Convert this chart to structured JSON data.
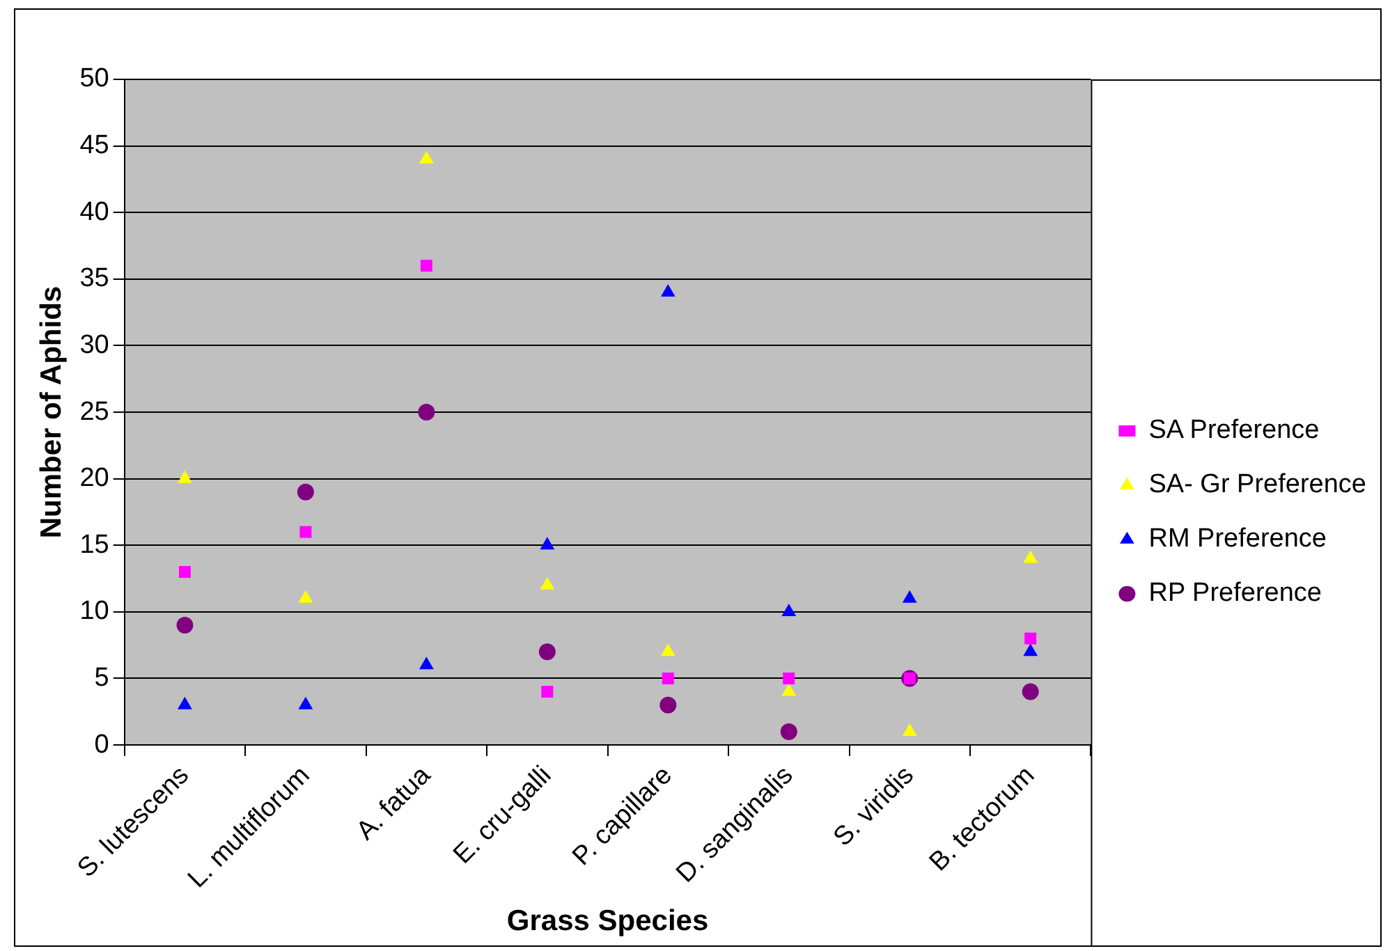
{
  "chart_data": {
    "type": "scatter",
    "xlabel": "Grass Species",
    "ylabel": "Number of Aphids",
    "categories": [
      "S. lutescens",
      "L. multiflorum",
      "A. fatua",
      "E. cru-galli",
      "P. capillare",
      "D. sanginalis",
      "S. viridis",
      "B. tectorum"
    ],
    "series": [
      {
        "name": "SA Preference",
        "color": "#ff00ff",
        "marker": "square",
        "values": [
          13,
          16,
          36,
          4,
          5,
          5,
          5,
          8
        ]
      },
      {
        "name": "SA- Gr Preference",
        "color": "#ffff00",
        "marker": "triangle",
        "values": [
          20,
          11,
          44,
          12,
          7,
          4,
          1,
          14
        ]
      },
      {
        "name": "RM Preference",
        "color": "#0000ff",
        "marker": "triangle",
        "values": [
          3,
          3,
          6,
          15,
          34,
          10,
          11,
          7
        ]
      },
      {
        "name": "RP Preference",
        "color": "#800080",
        "marker": "circle",
        "values": [
          9,
          19,
          25,
          7,
          3,
          1,
          5,
          4
        ]
      }
    ],
    "ylim": [
      0,
      50
    ],
    "yticks": [
      0,
      5,
      10,
      15,
      20,
      25,
      30,
      35,
      40,
      45,
      50
    ],
    "grid": "y",
    "legend": "right"
  }
}
